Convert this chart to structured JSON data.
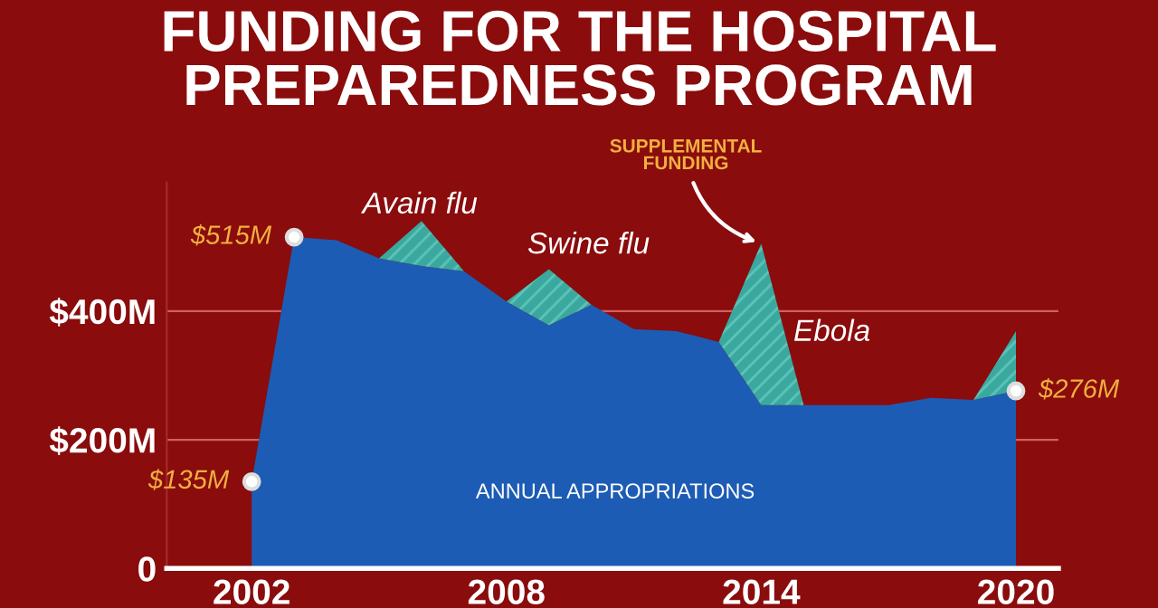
{
  "chart_data": {
    "type": "area",
    "stacked": true,
    "title": "FUNDING FOR THE HOSPITAL\nPREPAREDNESS PROGRAM",
    "x": [
      2002,
      2003,
      2004,
      2005,
      2006,
      2007,
      2008,
      2009,
      2010,
      2011,
      2012,
      2013,
      2014,
      2015,
      2016,
      2017,
      2018,
      2019,
      2020
    ],
    "series": [
      {
        "color": "#1d5cb4",
        "values": [
          135,
          515,
          510,
          482,
          470,
          462,
          415,
          378,
          410,
          372,
          369,
          352,
          254,
          254,
          254,
          254,
          265,
          262,
          276
        ],
        "value_labels": [
          "$135M",
          "$515M",
          null,
          null,
          null,
          null,
          null,
          null,
          null,
          null,
          null,
          null,
          null,
          null,
          null,
          null,
          null,
          null,
          "$276M"
        ]
      },
      {
        "color": "#3aa89e",
        "values": [
          0,
          0,
          0,
          0,
          70,
          0,
          0,
          87,
          0,
          0,
          0,
          0,
          251,
          0,
          0,
          0,
          0,
          0,
          93
        ]
      }
    ],
    "xlim": [
      2000,
      2021
    ],
    "xticks": [
      2002,
      2008,
      2014,
      2020
    ],
    "yticks": [
      {
        "value": 0,
        "label": "0"
      },
      {
        "value": 200,
        "label": "$200M"
      },
      {
        "value": 400,
        "label": "$400M"
      }
    ],
    "ylim": [
      0,
      600
    ],
    "ref_lines": [
      {
        "axis": "y",
        "value": 200,
        "color": "#d06060"
      },
      {
        "axis": "y",
        "value": 400,
        "color": "#d06060"
      }
    ],
    "legend": false,
    "annotations": [
      "Avain flu",
      "Swine flu",
      {
        "text": "SUPPLEMENTAL\nFUNDING",
        "x": 2014,
        "y": 505
      },
      "Ebola",
      "ANNUAL APPROPRIATIONS"
    ]
  }
}
